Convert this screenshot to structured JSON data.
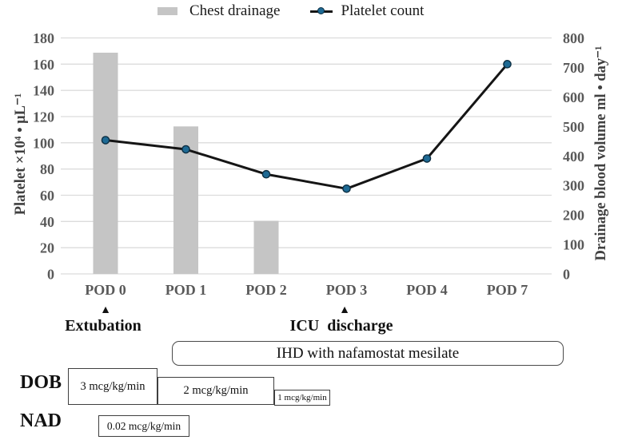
{
  "legend": {
    "chest_drainage_label": "Chest drainage",
    "platelet_count_label": "Platelet count"
  },
  "axes": {
    "left_title": "Platelet ×10⁴ • μL⁻¹",
    "right_title": "Drainage blood volume ml • day⁻¹"
  },
  "annotations": {
    "marker_glyph": "▲",
    "extubation": {
      "label": "Extubation",
      "at_category": "POD 0"
    },
    "icu_discharge": {
      "label": "ICU  discharge",
      "at_category": "POD 3"
    },
    "ihd": {
      "label": "IHD with nafamostat mesilate",
      "span": [
        "POD 1",
        "POD 7"
      ]
    },
    "dob": {
      "label": "DOB",
      "doses": [
        "3 mcg/kg/min",
        "2 mcg/kg/min",
        "1 mcg/kg/min"
      ]
    },
    "nad": {
      "label": "NAD",
      "doses": [
        "0.02 mcg/kg/min"
      ]
    }
  },
  "colors": {
    "bar": "#c5c5c5",
    "line": "#151515",
    "marker": "#1e6a94",
    "marker_border": "#0d2f43",
    "grid": "#dcdcdc",
    "tick_label": "#595959",
    "axis_title": "#404040"
  },
  "chart_data": {
    "type": "bar",
    "subtype": "combo-bar-line-dual-axis",
    "title": "",
    "categories": [
      "POD 0",
      "POD 1",
      "POD 2",
      "POD 3",
      "POD 4",
      "POD 7"
    ],
    "series": [
      {
        "name": "Chest drainage",
        "type": "bar",
        "axis": "right",
        "values": [
          750,
          500,
          180,
          null,
          null,
          null
        ]
      },
      {
        "name": "Platelet count",
        "type": "line",
        "axis": "left",
        "values": [
          102,
          95,
          76,
          65,
          88,
          160
        ]
      }
    ],
    "left_axis": {
      "label": "Platelet ×10⁴ • μL⁻¹",
      "min": 0,
      "max": 180,
      "step": 20
    },
    "right_axis": {
      "label": "Drainage blood volume ml • day⁻¹",
      "min": 0,
      "max": 800,
      "step": 100
    },
    "grid": true,
    "legend_position": "top"
  }
}
